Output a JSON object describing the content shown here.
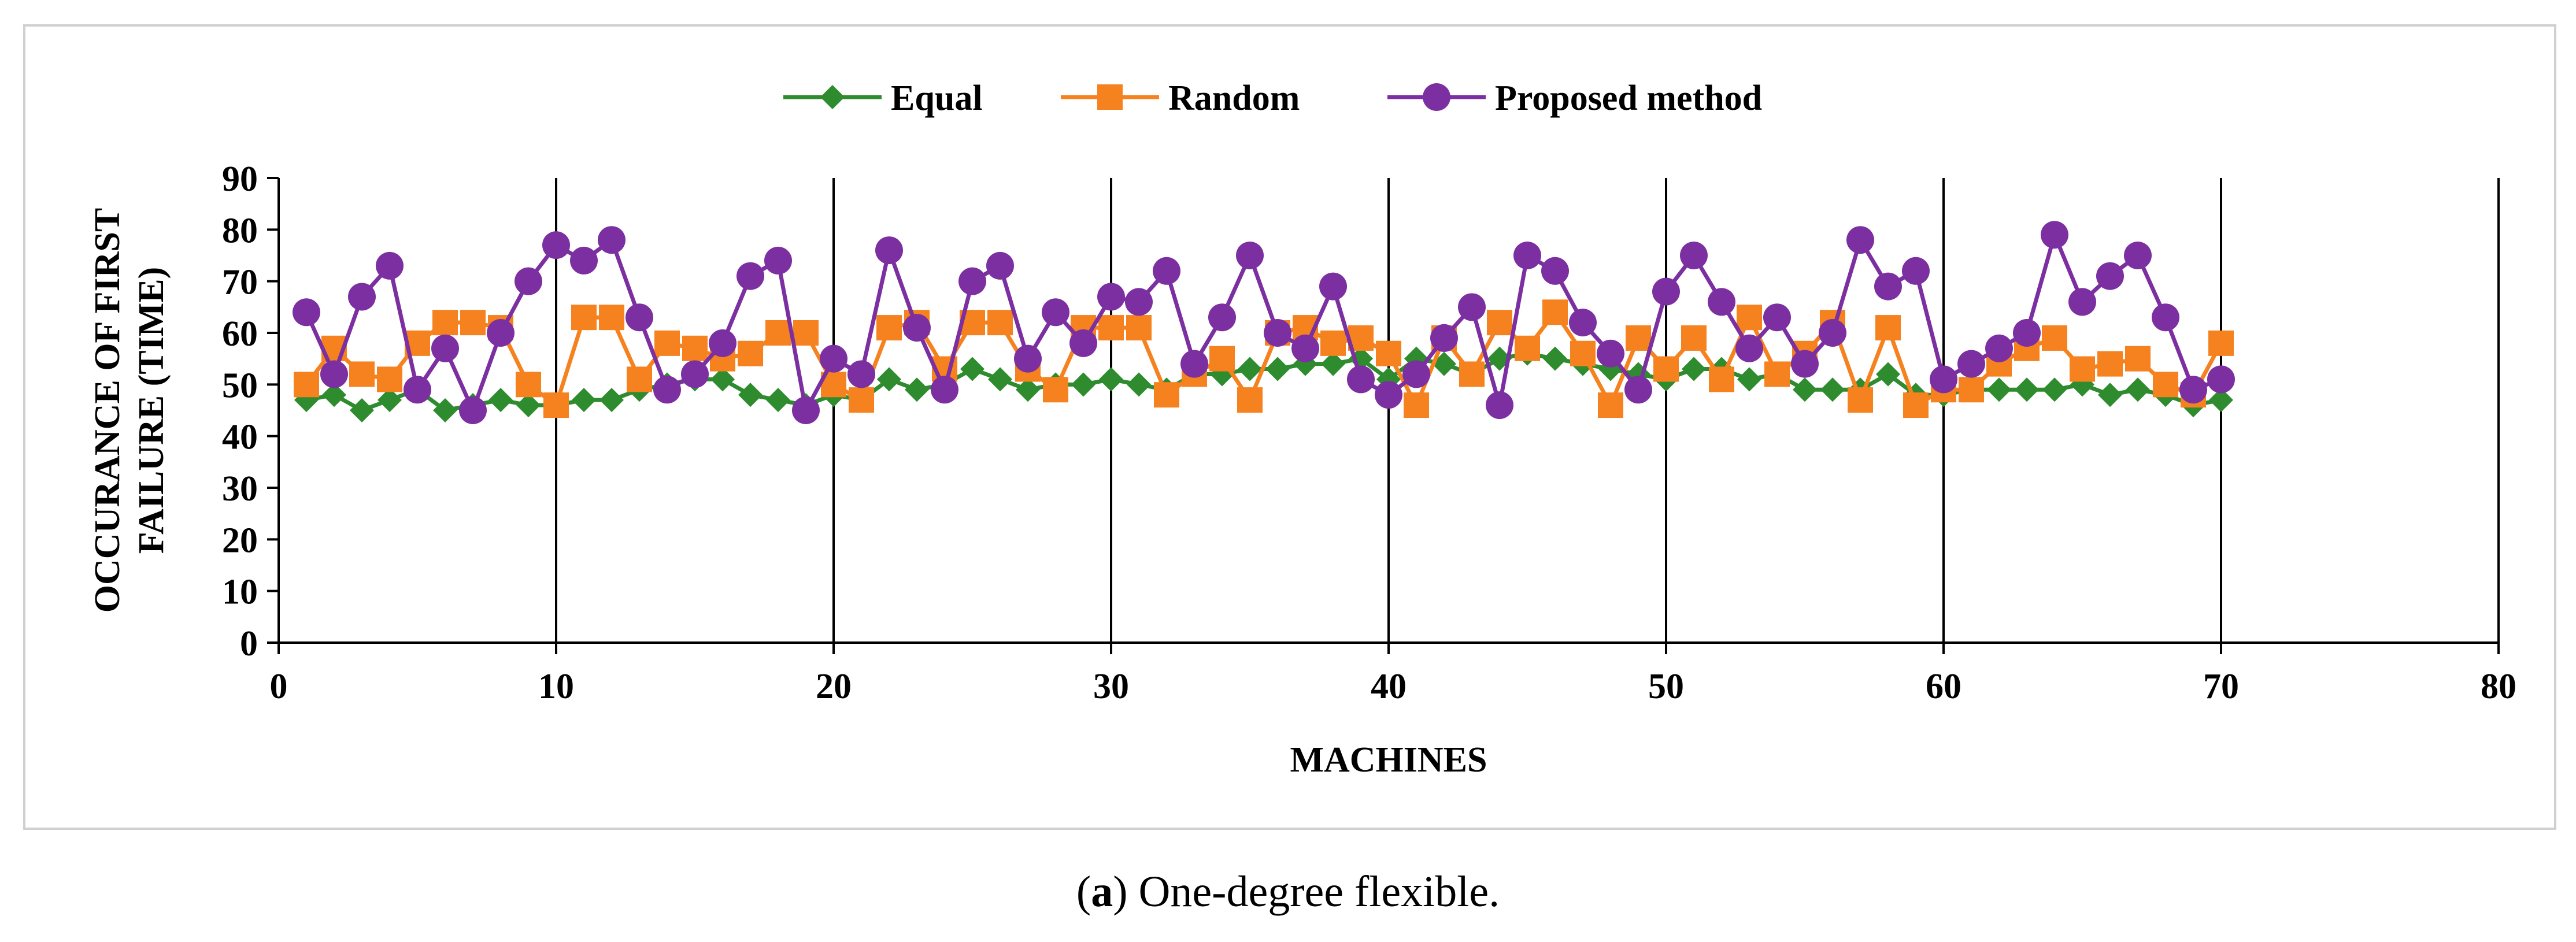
{
  "caption": {
    "letter": "a",
    "text": "One-degree flexible."
  },
  "chart_data": {
    "type": "line",
    "title": "",
    "xlabel": "MACHINES",
    "ylabel": "OCCURANCE OF FIRST FAILURE (TIME)",
    "ylabel_lines": [
      "OCCURANCE OF FIRST",
      "FAILURE (TIME)"
    ],
    "xlim": [
      0,
      80
    ],
    "ylim": [
      0,
      90
    ],
    "x_ticks": [
      0,
      10,
      20,
      30,
      40,
      50,
      60,
      70,
      80
    ],
    "y_ticks": [
      0,
      10,
      20,
      30,
      40,
      50,
      60,
      70,
      80,
      90
    ],
    "vertical_grid": true,
    "horizontal_grid": false,
    "legend_position": "top-center",
    "x": [
      1,
      2,
      3,
      4,
      5,
      6,
      7,
      8,
      9,
      10,
      11,
      12,
      13,
      14,
      15,
      16,
      17,
      18,
      19,
      20,
      21,
      22,
      23,
      24,
      25,
      26,
      27,
      28,
      29,
      30,
      31,
      32,
      33,
      34,
      35,
      36,
      37,
      38,
      39,
      40,
      41,
      42,
      43,
      44,
      45,
      46,
      47,
      48,
      49,
      50,
      51,
      52,
      53,
      54,
      55,
      56,
      57,
      58,
      59,
      60,
      61,
      62,
      63,
      64,
      65,
      66,
      67,
      68,
      69,
      70
    ],
    "series": [
      {
        "name": "Equal",
        "color": "#2e8b2e",
        "marker": "diamond",
        "values": [
          47,
          48,
          45,
          47,
          49,
          45,
          46,
          47,
          46,
          46,
          47,
          47,
          49,
          50,
          51,
          51,
          48,
          47,
          46,
          48,
          47,
          51,
          49,
          50,
          53,
          51,
          49,
          50,
          50,
          51,
          50,
          49,
          52,
          52,
          53,
          53,
          54,
          54,
          55,
          51,
          55,
          54,
          52,
          55,
          56,
          55,
          54,
          53,
          52,
          51,
          53,
          53,
          51,
          52,
          49,
          49,
          49,
          52,
          48,
          48,
          49,
          49,
          49,
          49,
          50,
          48,
          49,
          48,
          46,
          47
        ]
      },
      {
        "name": "Random",
        "color": "#f5821f",
        "marker": "square",
        "values": [
          50,
          57,
          52,
          51,
          58,
          62,
          62,
          61,
          50,
          46,
          63,
          63,
          51,
          58,
          57,
          55,
          56,
          60,
          60,
          50,
          47,
          61,
          62,
          53,
          62,
          62,
          53,
          49,
          61,
          61,
          61,
          48,
          52,
          55,
          47,
          60,
          61,
          58,
          59,
          56,
          46,
          59,
          52,
          62,
          57,
          64,
          56,
          46,
          59,
          53,
          59,
          51,
          63,
          52,
          56,
          62,
          47,
          61,
          46,
          49,
          49,
          54,
          57,
          59,
          53,
          54,
          55,
          50,
          48,
          58
        ]
      },
      {
        "name": "Proposed method",
        "color": "#7b2fa0",
        "marker": "circle",
        "values": [
          64,
          52,
          67,
          73,
          49,
          57,
          45,
          60,
          70,
          77,
          74,
          78,
          63,
          49,
          52,
          58,
          71,
          74,
          45,
          55,
          52,
          76,
          61,
          49,
          70,
          73,
          55,
          64,
          58,
          67,
          66,
          72,
          54,
          63,
          75,
          60,
          57,
          69,
          51,
          48,
          52,
          59,
          65,
          46,
          75,
          72,
          62,
          56,
          49,
          68,
          75,
          66,
          57,
          63,
          54,
          60,
          78,
          69,
          72,
          51,
          54,
          57,
          60,
          79,
          66,
          71,
          75,
          63,
          49,
          51
        ]
      }
    ]
  }
}
